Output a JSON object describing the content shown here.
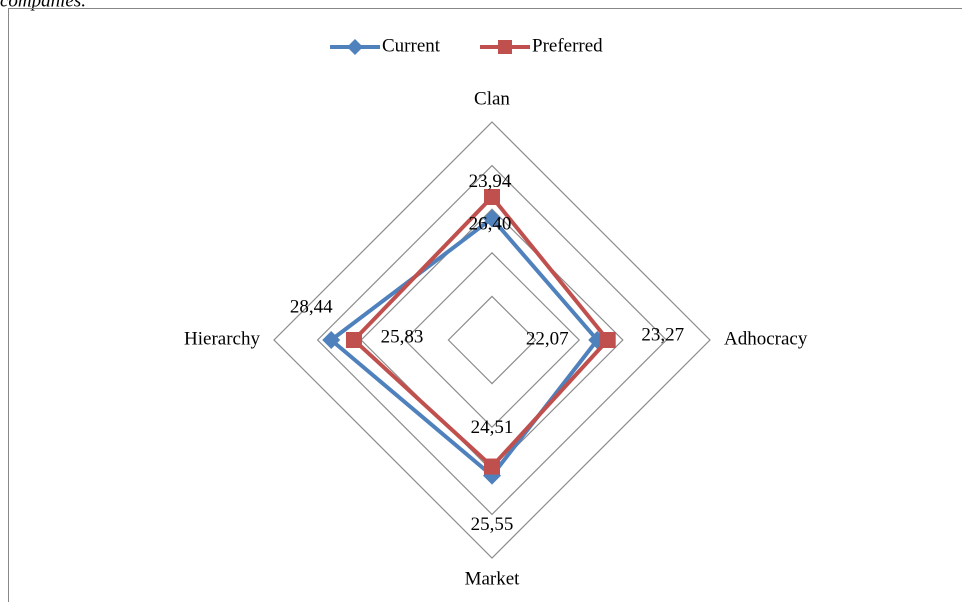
{
  "caption": "companies.",
  "chart_data": {
    "type": "radar",
    "categories": [
      "Clan",
      "Adhocracy",
      "Market",
      "Hierarchy"
    ],
    "series": [
      {
        "name": "Current",
        "color": "#4f81bd",
        "marker": "diamond",
        "values": [
          23.94,
          22.07,
          25.55,
          28.44
        ],
        "value_labels": [
          "23,94",
          "22,07",
          "25,55",
          "28,44"
        ]
      },
      {
        "name": "Preferred",
        "color": "#c0504d",
        "marker": "square",
        "values": [
          26.4,
          23.27,
          24.51,
          25.83
        ],
        "value_labels": [
          "26,40",
          "23,27",
          "24,51",
          "25,83"
        ]
      }
    ],
    "ylim": [
      10,
      35
    ],
    "yticks": [
      10,
      15,
      20,
      25,
      30,
      35
    ],
    "grid": true,
    "legend": "top"
  }
}
